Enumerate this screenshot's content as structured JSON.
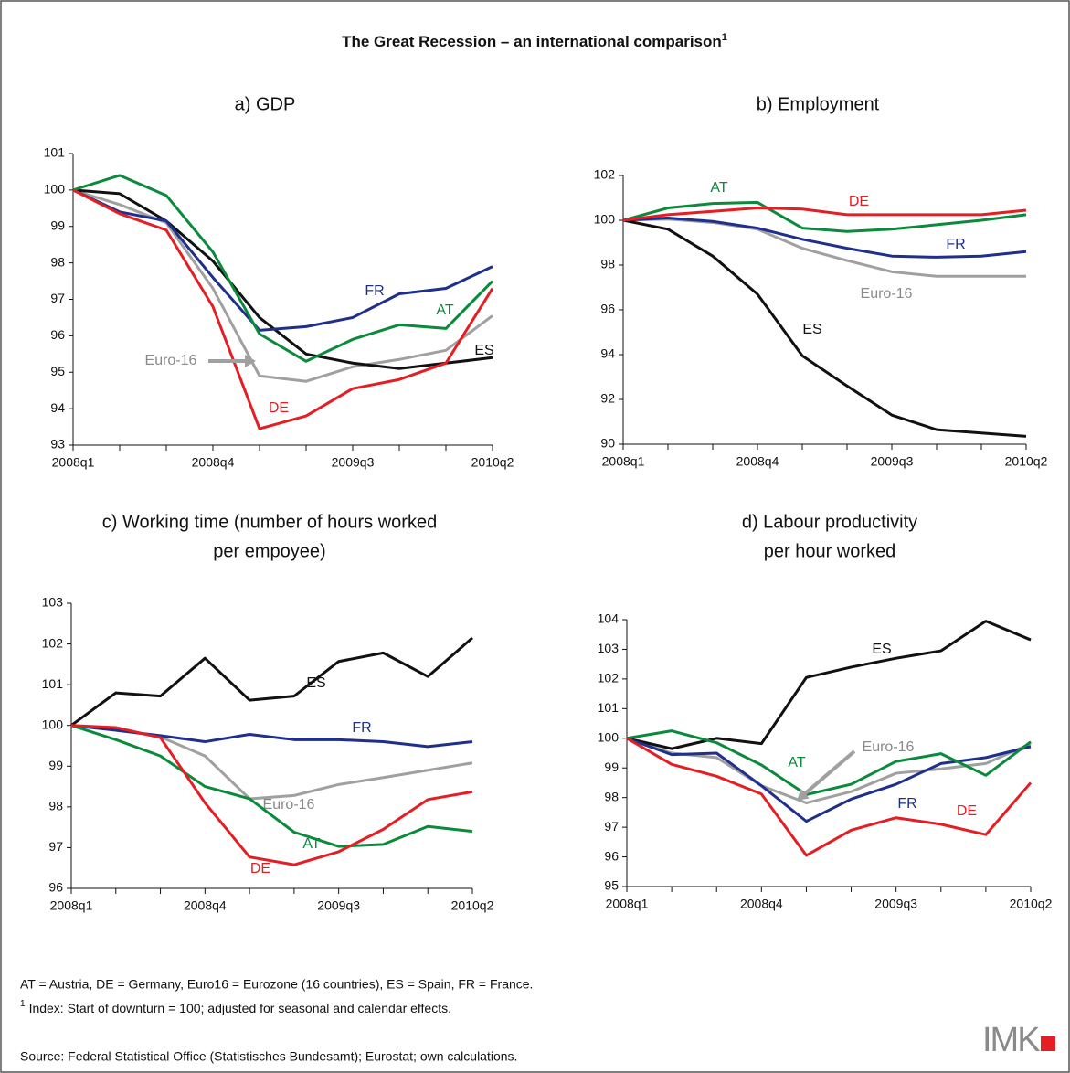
{
  "title": "The Great Recession – an international comparison",
  "title_note": "1",
  "chart_data": [
    {
      "type": "line",
      "title": [
        "a) GDP"
      ],
      "categories": [
        "2008q1",
        null,
        null,
        "2008q4",
        null,
        null,
        "2009q3",
        null,
        null,
        "2010q2"
      ],
      "ylim": [
        93,
        101
      ],
      "yticks": [
        93,
        94,
        95,
        96,
        97,
        98,
        99,
        100,
        101
      ],
      "series": [
        {
          "name": "Euro-16",
          "color": "#a0a0a0",
          "values": [
            100,
            99.6,
            99.1,
            97.3,
            94.9,
            94.75,
            95.15,
            95.35,
            95.6,
            96.55
          ]
        },
        {
          "name": "ES",
          "color": "#111111",
          "values": [
            100,
            99.9,
            99.15,
            98.05,
            96.5,
            95.5,
            95.25,
            95.1,
            95.25,
            95.4
          ]
        },
        {
          "name": "FR",
          "color": "#1f2f8c",
          "values": [
            100,
            99.4,
            99.15,
            97.6,
            96.15,
            96.25,
            96.5,
            97.15,
            97.3,
            97.9
          ]
        },
        {
          "name": "AT",
          "color": "#0b8a3c",
          "values": [
            100,
            100.4,
            99.85,
            98.3,
            96.05,
            95.3,
            95.9,
            96.3,
            96.2,
            97.5
          ]
        },
        {
          "name": "DE",
          "color": "#e31e24",
          "values": [
            100,
            99.35,
            98.9,
            96.8,
            93.45,
            93.8,
            94.55,
            94.8,
            95.25,
            97.3
          ]
        }
      ]
    },
    {
      "type": "line",
      "title": [
        "b) Employment"
      ],
      "categories": [
        "2008q1",
        null,
        null,
        "2008q4",
        null,
        null,
        "2009q3",
        null,
        null,
        "2010q2"
      ],
      "ylim": [
        90,
        102
      ],
      "yticks": [
        90,
        92,
        94,
        96,
        98,
        100,
        102
      ],
      "series": [
        {
          "name": "Euro-16",
          "color": "#a0a0a0",
          "values": [
            100,
            100.05,
            99.9,
            99.6,
            98.75,
            98.2,
            97.7,
            97.5,
            97.5,
            97.5
          ]
        },
        {
          "name": "ES",
          "color": "#111111",
          "values": [
            100,
            99.6,
            98.4,
            96.7,
            93.95,
            92.6,
            91.3,
            90.65,
            90.5,
            90.35
          ]
        },
        {
          "name": "FR",
          "color": "#1f2f8c",
          "values": [
            100,
            100.1,
            99.95,
            99.65,
            99.15,
            98.75,
            98.4,
            98.35,
            98.4,
            98.6
          ]
        },
        {
          "name": "AT",
          "color": "#0b8a3c",
          "values": [
            100,
            100.55,
            100.75,
            100.8,
            99.65,
            99.5,
            99.6,
            99.8,
            100,
            100.25
          ]
        },
        {
          "name": "DE",
          "color": "#e31e24",
          "values": [
            100,
            100.25,
            100.4,
            100.55,
            100.5,
            100.25,
            100.25,
            100.25,
            100.25,
            100.45
          ]
        }
      ]
    },
    {
      "type": "line",
      "title": [
        "c) Working time (number of hours worked",
        "per empoyee)"
      ],
      "categories": [
        "2008q1",
        null,
        null,
        "2008q4",
        null,
        null,
        "2009q3",
        null,
        null,
        "2010q2"
      ],
      "ylim": [
        96,
        103
      ],
      "yticks": [
        96,
        97,
        98,
        99,
        100,
        101,
        102,
        103
      ],
      "series": [
        {
          "name": "Euro-16",
          "color": "#a0a0a0",
          "values": [
            100,
            99.9,
            99.72,
            99.25,
            98.2,
            98.28,
            98.55,
            98.72,
            98.9,
            99.08
          ]
        },
        {
          "name": "ES",
          "color": "#111111",
          "values": [
            100,
            100.8,
            100.72,
            101.65,
            100.62,
            100.72,
            101.57,
            101.78,
            101.2,
            102.15
          ]
        },
        {
          "name": "FR",
          "color": "#1f2f8c",
          "values": [
            100,
            99.88,
            99.75,
            99.6,
            99.78,
            99.65,
            99.65,
            99.6,
            99.48,
            99.6
          ]
        },
        {
          "name": "AT",
          "color": "#0b8a3c",
          "values": [
            100,
            99.65,
            99.25,
            98.5,
            98.2,
            97.38,
            97.03,
            97.08,
            97.52,
            97.4
          ]
        },
        {
          "name": "DE",
          "color": "#e31e24",
          "values": [
            100,
            99.95,
            99.7,
            98.1,
            96.77,
            96.58,
            96.9,
            97.45,
            98.18,
            98.37
          ]
        }
      ]
    },
    {
      "type": "line",
      "title": [
        "d) Labour productivity",
        "per hour worked"
      ],
      "categories": [
        "2008q1",
        null,
        null,
        "2008q4",
        null,
        null,
        "2009q3",
        null,
        null,
        "2010q2"
      ],
      "ylim": [
        95,
        104
      ],
      "yticks": [
        95,
        96,
        97,
        98,
        99,
        100,
        101,
        102,
        103,
        104
      ],
      "series": [
        {
          "name": "Euro-16",
          "color": "#a0a0a0",
          "values": [
            100,
            99.5,
            99.35,
            98.4,
            97.82,
            98.2,
            98.82,
            98.97,
            99.15,
            99.82
          ]
        },
        {
          "name": "ES",
          "color": "#111111",
          "values": [
            100,
            99.65,
            100,
            99.82,
            102.05,
            102.4,
            102.7,
            102.95,
            103.95,
            103.32
          ]
        },
        {
          "name": "FR",
          "color": "#1f2f8c",
          "values": [
            100,
            99.45,
            99.5,
            98.4,
            97.2,
            97.95,
            98.45,
            99.15,
            99.35,
            99.72
          ]
        },
        {
          "name": "AT",
          "color": "#0b8a3c",
          "values": [
            100,
            100.25,
            99.85,
            99.1,
            98.1,
            98.45,
            99.22,
            99.48,
            98.75,
            99.88
          ]
        },
        {
          "name": "DE",
          "color": "#e31e24",
          "values": [
            100,
            99.12,
            98.72,
            98.12,
            96.05,
            96.9,
            97.32,
            97.1,
            96.75,
            98.5
          ]
        }
      ]
    }
  ],
  "notes": [
    "AT = Austria, DE = Germany, Euro16 = Eurozone (16 countries), ES = Spain, FR = France."
  ],
  "footnote": {
    "marker": "1",
    "text": "Index: Start of downturn = 100; adjusted for seasonal and calendar effects."
  },
  "source": "Source: Federal Statistical Office (Statistisches Bundesamt); Eurostat; own calculations.",
  "logo": "IMK"
}
